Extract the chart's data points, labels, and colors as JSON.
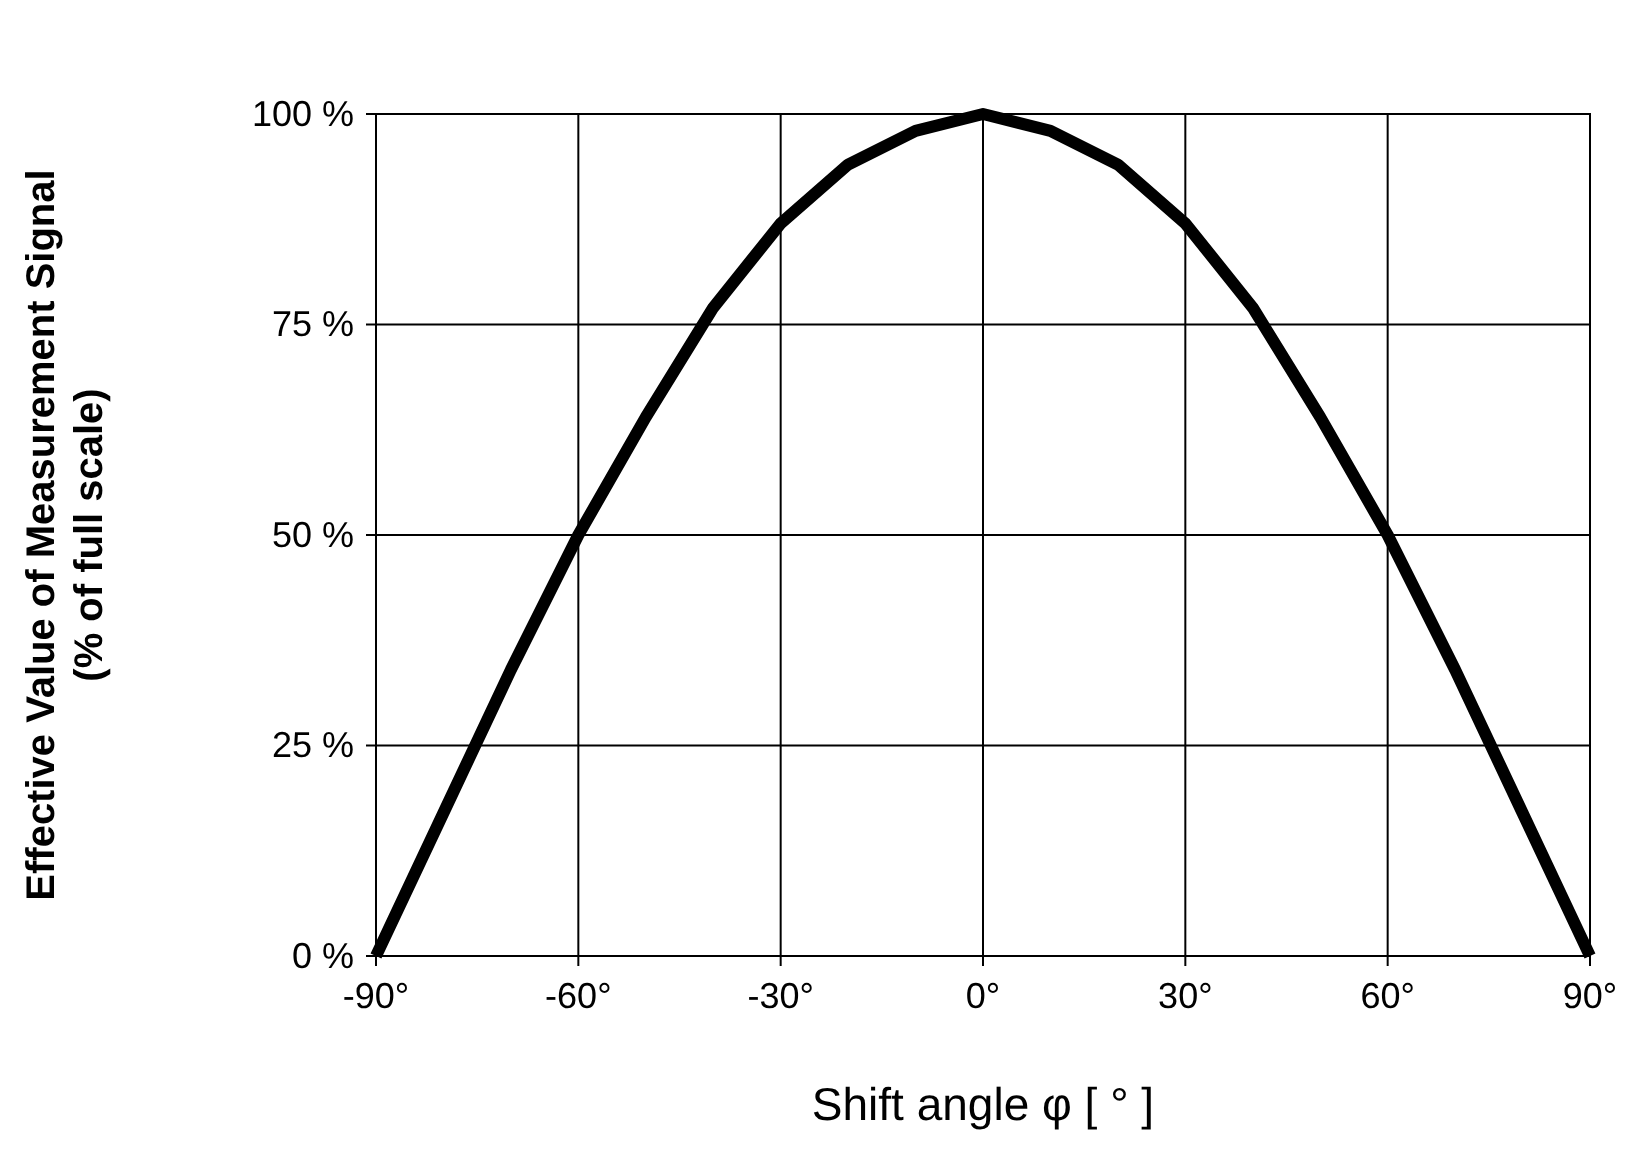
{
  "chart_data": {
    "type": "line",
    "xlabel": "Shift angle φ [ ° ]",
    "ylabel": "Effective Value of Measurement Signal\n(% of full scale)",
    "x": [
      -90,
      -80,
      -70,
      -60,
      -50,
      -40,
      -30,
      -20,
      -10,
      0,
      10,
      20,
      30,
      40,
      50,
      60,
      70,
      80,
      90
    ],
    "series": [
      {
        "color": "#000000",
        "values": [
          0,
          17,
          34,
          50,
          64,
          77,
          87,
          94,
          98,
          100,
          98,
          94,
          87,
          77,
          64,
          50,
          34,
          17,
          0
        ]
      }
    ],
    "xlim": [
      -90,
      90
    ],
    "ylim": [
      0,
      100
    ],
    "xticks": [
      {
        "value": -90,
        "label": "-90°"
      },
      {
        "value": -60,
        "label": "-60°"
      },
      {
        "value": -30,
        "label": "-30°"
      },
      {
        "value": 0,
        "label": "0°"
      },
      {
        "value": 30,
        "label": "30°"
      },
      {
        "value": 60,
        "label": "60°"
      },
      {
        "value": 90,
        "label": "90°"
      }
    ],
    "yticks": [
      {
        "value": 0,
        "label": "0 %"
      },
      {
        "value": 25,
        "label": "25 %"
      },
      {
        "value": 50,
        "label": "50 %"
      },
      {
        "value": 75,
        "label": "75 %"
      },
      {
        "value": 100,
        "label": "100 %"
      }
    ],
    "grid": true,
    "marker": "none",
    "line_style": "solid"
  }
}
